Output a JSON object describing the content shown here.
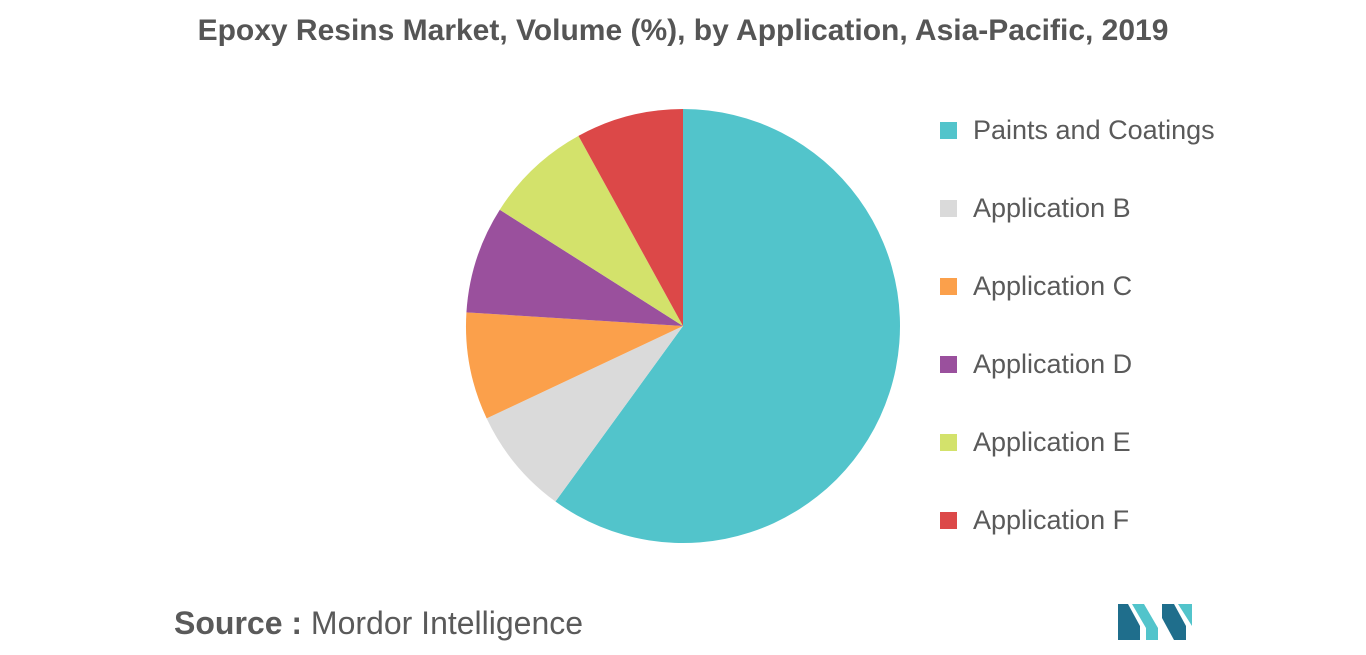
{
  "chart_data": {
    "type": "pie",
    "title": "Epoxy Resins Market, Volume (%), by Application, Asia-Pacific, 2019",
    "categories": [
      "Paints and Coatings",
      "Application B",
      "Application C",
      "Application D",
      "Application E",
      "Application F"
    ],
    "values": [
      60,
      8,
      8,
      8,
      8,
      8
    ],
    "colors": [
      "#52C4CB",
      "#DADADA",
      "#FBA04B",
      "#9A509D",
      "#D3E26B",
      "#DC4848"
    ],
    "legend_position": "right"
  },
  "source": {
    "label": "Source :",
    "text": "Mordor Intelligence"
  },
  "logo": {
    "icon": "mordor-intelligence-logo-icon",
    "colors": [
      "#1F6E8C",
      "#52C4CB"
    ]
  }
}
